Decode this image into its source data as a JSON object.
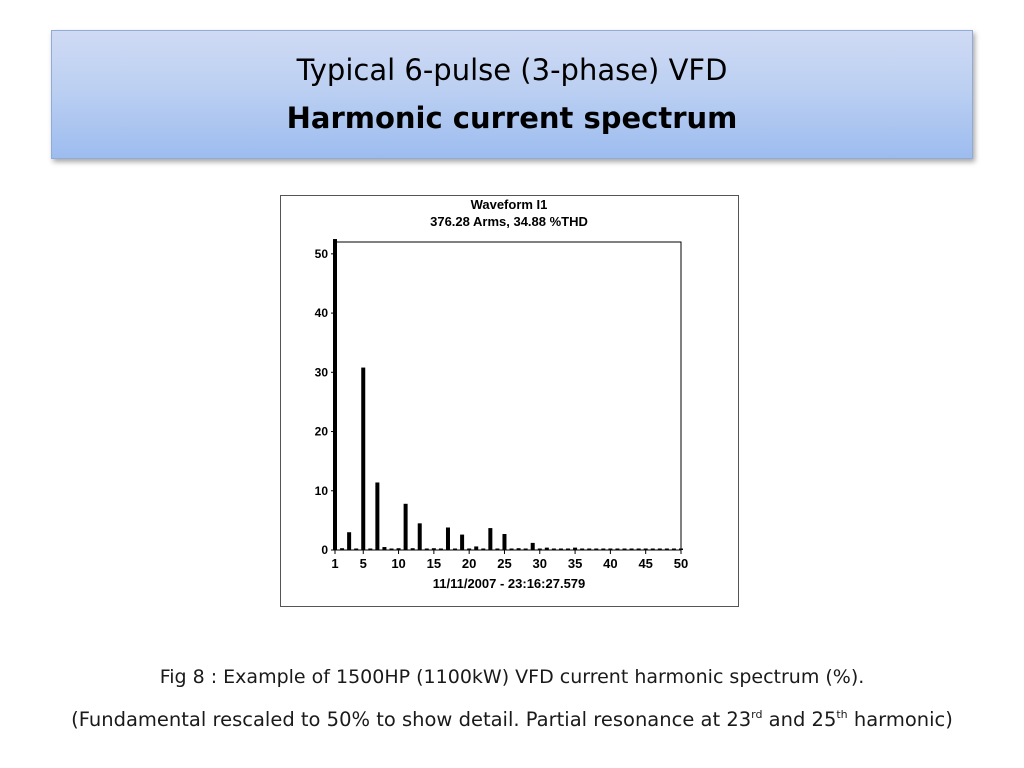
{
  "slide": {
    "title_line1": "Typical 6-pulse (3-phase) VFD",
    "title_line2": "Harmonic current spectrum"
  },
  "caption": {
    "line1": "Fig 8 :  Example of 1500HP (1100kW) VFD current harmonic spectrum (%).",
    "line2_a": "(Fundamental rescaled to 50% to show detail.  Partial resonance at 23",
    "line2_sup1": "rd",
    "line2_b": " and 25",
    "line2_sup2": "th",
    "line2_c": " harmonic)"
  },
  "chart_data": {
    "type": "bar",
    "title": "Waveform I1",
    "subtitle": "376.28 Arms, 34.88 %THD",
    "footer": "11/11/2007 - 23:16:27.579",
    "xlabel": "",
    "ylabel": "",
    "xlim": [
      1,
      50
    ],
    "ylim": [
      0,
      52
    ],
    "x_ticks": [
      1,
      5,
      10,
      15,
      20,
      25,
      30,
      35,
      40,
      45,
      50
    ],
    "y_ticks": [
      0,
      10,
      20,
      30,
      40,
      50
    ],
    "grid": false,
    "legend": "none",
    "bar_color": "#000000",
    "x": [
      1,
      2,
      3,
      4,
      5,
      6,
      7,
      8,
      9,
      10,
      11,
      12,
      13,
      14,
      15,
      16,
      17,
      18,
      19,
      20,
      21,
      22,
      23,
      24,
      25,
      26,
      27,
      28,
      29,
      30,
      31,
      32,
      33,
      34,
      35,
      36,
      37,
      38,
      39,
      40,
      41,
      42,
      43,
      44,
      45,
      46,
      47,
      48,
      49,
      50
    ],
    "values": [
      52.5,
      0.3,
      3.0,
      0.2,
      30.8,
      0.1,
      11.4,
      0.5,
      0.2,
      0.3,
      7.8,
      0.3,
      4.5,
      0.1,
      0.3,
      0.1,
      3.8,
      0.1,
      2.6,
      0.1,
      0.6,
      0.1,
      3.7,
      0.1,
      2.7,
      0.1,
      0.3,
      0.1,
      1.2,
      0.1,
      0.4,
      0.1,
      0.1,
      0.1,
      0.4,
      0.1,
      0.1,
      0.1,
      0.1,
      0.1,
      0.2,
      0.1,
      0.1,
      0.1,
      0.2,
      0.1,
      0.1,
      0.1,
      0.2,
      0.1
    ]
  }
}
